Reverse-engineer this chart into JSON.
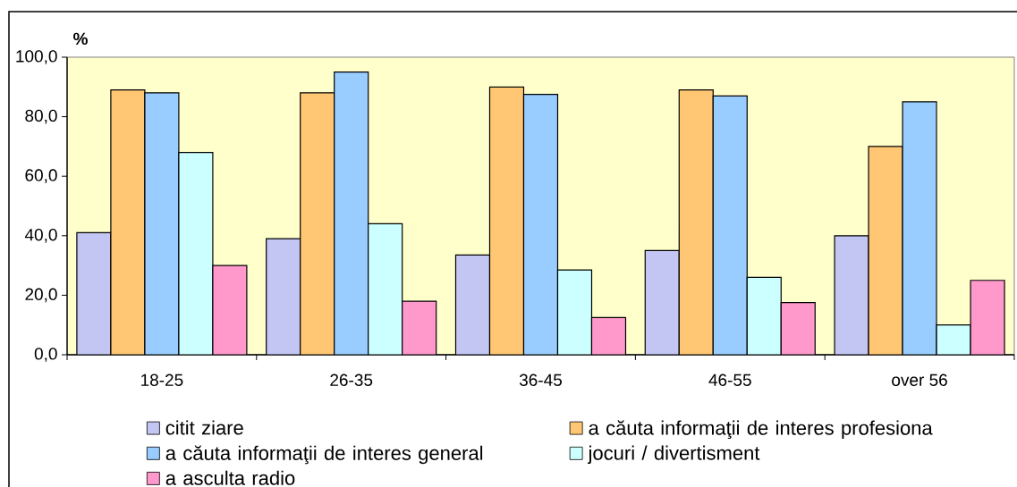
{
  "chart_data": {
    "type": "bar",
    "ylabel": "%",
    "categories": [
      "18-25",
      "26-35",
      "36-45",
      "46-55",
      "over 56"
    ],
    "series": [
      {
        "name": "citit  ziare",
        "color": "#c3c6f2",
        "values": [
          41,
          39,
          33.5,
          35,
          40
        ]
      },
      {
        "name": "a căuta informaţii de interes profesiona",
        "color": "#ffc773",
        "values": [
          89,
          88,
          90,
          89,
          70
        ]
      },
      {
        "name": "a căuta informaţii de interes general",
        "color": "#99ccff",
        "values": [
          88,
          95,
          87.5,
          87,
          85
        ]
      },
      {
        "name": "jocuri / divertisment",
        "color": "#ccffff",
        "values": [
          68,
          44,
          28.5,
          26,
          10
        ]
      },
      {
        "name": "a asculta radio",
        "color": "#ff99cc",
        "values": [
          30,
          18,
          12.5,
          17.5,
          25
        ]
      }
    ],
    "ylim": [
      0,
      100
    ],
    "yticks": [
      {
        "value": 0,
        "label": "0,0"
      },
      {
        "value": 20,
        "label": "20,0"
      },
      {
        "value": 40,
        "label": "40,0"
      },
      {
        "value": 60,
        "label": "60,0"
      },
      {
        "value": 80,
        "label": "80,0"
      },
      {
        "value": 100,
        "label": "100,0"
      }
    ],
    "legend": "bottom"
  }
}
